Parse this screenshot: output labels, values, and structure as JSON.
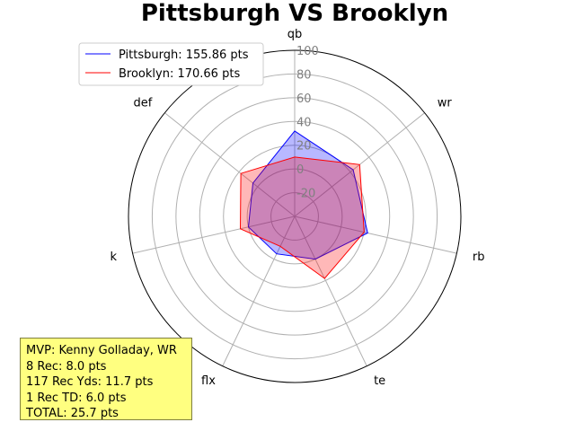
{
  "chart_data": {
    "type": "radar",
    "title": "Pittsburgh VS Brooklyn",
    "axes": [
      "qb",
      "wr",
      "rb",
      "te",
      "flx",
      "k",
      "def"
    ],
    "rlim": [
      -40,
      100
    ],
    "rticks": [
      -20,
      0,
      20,
      40,
      60,
      80,
      100
    ],
    "rtick_labels": [
      "-20",
      "0",
      "20",
      "40",
      "60",
      "80",
      "100"
    ],
    "grid": true,
    "legend_position": "upper-left",
    "series": [
      {
        "name": "Pittsburgh: 155.86 pts",
        "color": "#0000ff",
        "values": [
          32,
          23,
          23,
          0,
          -5,
          0,
          5
        ]
      },
      {
        "name": "Brooklyn: 170.66 pts",
        "color": "#ff0000",
        "values": [
          10,
          30,
          20,
          18,
          -12,
          7,
          18
        ]
      }
    ]
  },
  "annotation": {
    "lines": [
      "MVP: Kenny Golladay, WR",
      "8 Rec: 8.0 pts",
      "117 Rec Yds: 11.7 pts",
      "1 Rec TD: 6.0 pts",
      "TOTAL: 25.7 pts"
    ]
  }
}
